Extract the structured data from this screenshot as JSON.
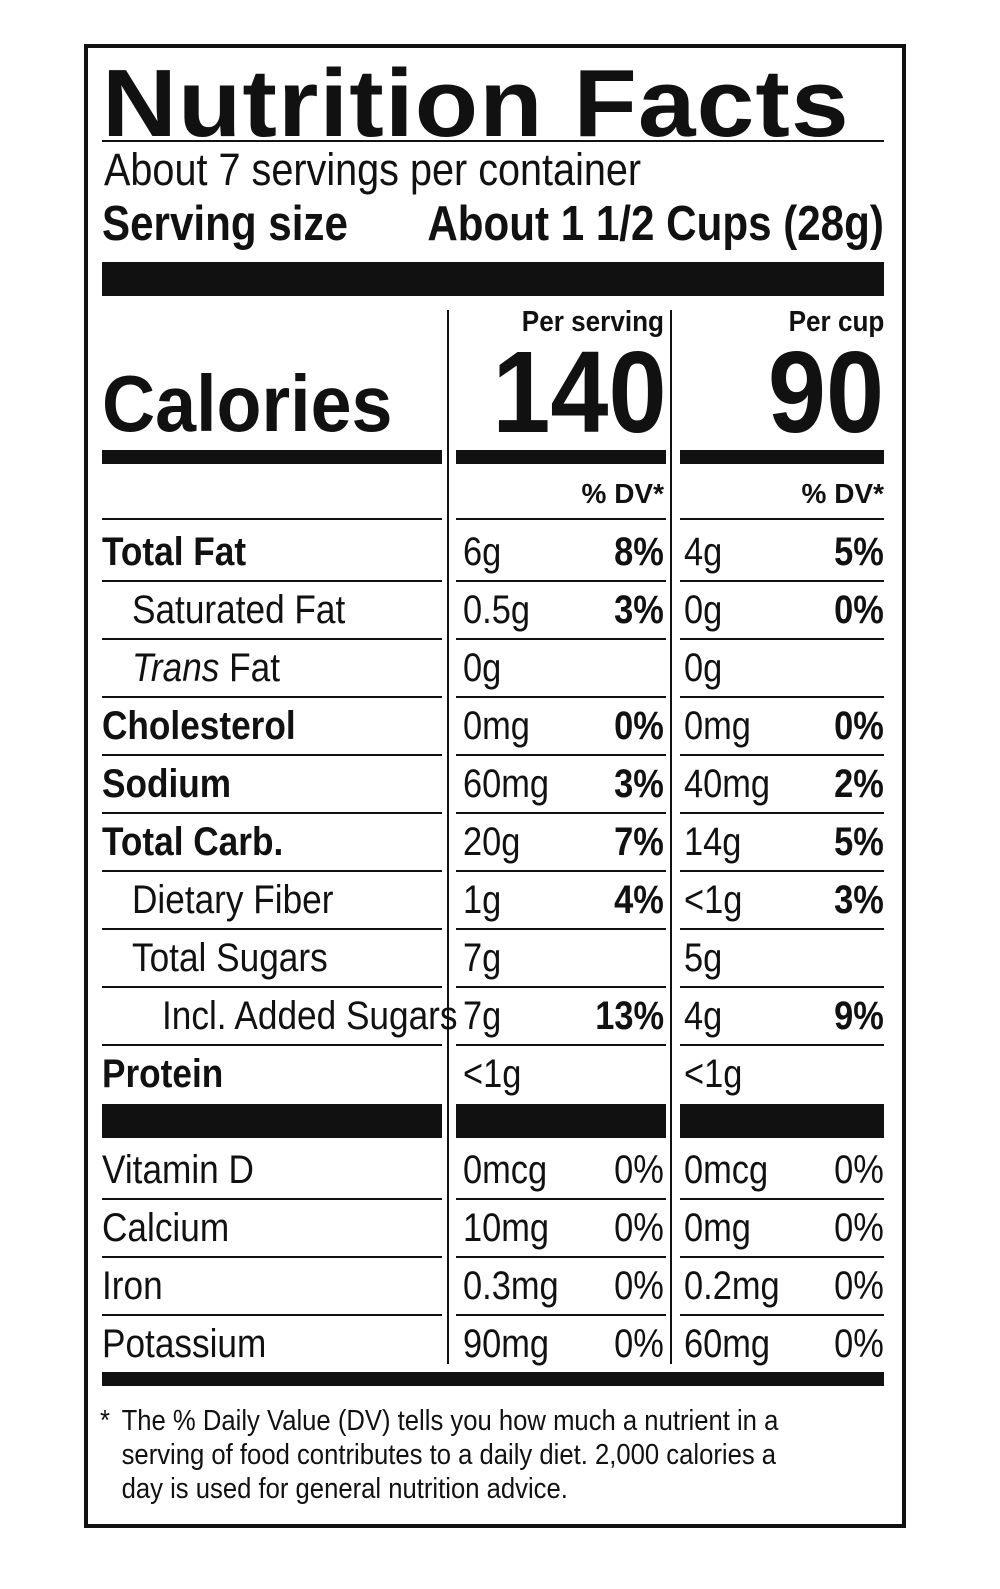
{
  "title": "Nutrition Facts",
  "servings_per_container": "About 7 servings per container",
  "serving_size": {
    "label": "Serving size",
    "value": "About 1 1/2 Cups (28g)"
  },
  "calories": {
    "label": "Calories",
    "columns": [
      {
        "heading": "Per serving",
        "value": "140",
        "dv_heading": "% DV*"
      },
      {
        "heading": "Per cup",
        "value": "90",
        "dv_heading": "% DV*"
      }
    ]
  },
  "nutrients": [
    {
      "name": "Total Fat",
      "bold": true,
      "indent": 0,
      "serving": {
        "amount": "6g",
        "dv": "8%"
      },
      "cup": {
        "amount": "4g",
        "dv": "5%"
      }
    },
    {
      "name": "Saturated Fat",
      "bold": false,
      "indent": 1,
      "serving": {
        "amount": "0.5g",
        "dv": "3%"
      },
      "cup": {
        "amount": "0g",
        "dv": "0%"
      }
    },
    {
      "name_italic": "Trans",
      "name": " Fat",
      "bold": false,
      "indent": 1,
      "serving": {
        "amount": "0g",
        "dv": ""
      },
      "cup": {
        "amount": "0g",
        "dv": ""
      }
    },
    {
      "name": "Cholesterol",
      "bold": true,
      "indent": 0,
      "serving": {
        "amount": "0mg",
        "dv": "0%"
      },
      "cup": {
        "amount": "0mg",
        "dv": "0%"
      }
    },
    {
      "name": "Sodium",
      "bold": true,
      "indent": 0,
      "serving": {
        "amount": "60mg",
        "dv": "3%"
      },
      "cup": {
        "amount": "40mg",
        "dv": "2%"
      }
    },
    {
      "name": "Total Carb.",
      "bold": true,
      "indent": 0,
      "serving": {
        "amount": "20g",
        "dv": "7%"
      },
      "cup": {
        "amount": "14g",
        "dv": "5%"
      }
    },
    {
      "name": "Dietary Fiber",
      "bold": false,
      "indent": 1,
      "serving": {
        "amount": "1g",
        "dv": "4%"
      },
      "cup": {
        "amount": "<1g",
        "dv": "3%"
      }
    },
    {
      "name": "Total Sugars",
      "bold": false,
      "indent": 1,
      "serving": {
        "amount": "7g",
        "dv": ""
      },
      "cup": {
        "amount": "5g",
        "dv": ""
      }
    },
    {
      "name": "Incl. Added Sugars",
      "bold": false,
      "indent": 2,
      "serving": {
        "amount": "7g",
        "dv": "13%"
      },
      "cup": {
        "amount": "4g",
        "dv": "9%"
      }
    },
    {
      "name": "Protein",
      "bold": true,
      "indent": 0,
      "serving": {
        "amount": "<1g",
        "dv": ""
      },
      "cup": {
        "amount": "<1g",
        "dv": ""
      }
    }
  ],
  "vitamins": [
    {
      "name": "Vitamin D",
      "serving": {
        "amount": "0mcg",
        "dv": "0%"
      },
      "cup": {
        "amount": "0mcg",
        "dv": "0%"
      }
    },
    {
      "name": "Calcium",
      "serving": {
        "amount": "10mg",
        "dv": "0%"
      },
      "cup": {
        "amount": "0mg",
        "dv": "0%"
      }
    },
    {
      "name": "Iron",
      "serving": {
        "amount": "0.3mg",
        "dv": "0%"
      },
      "cup": {
        "amount": "0.2mg",
        "dv": "0%"
      }
    },
    {
      "name": "Potassium",
      "serving": {
        "amount": "90mg",
        "dv": "0%"
      },
      "cup": {
        "amount": "60mg",
        "dv": "0%"
      }
    }
  ],
  "footnote": {
    "marker": "*",
    "text": "The % Daily Value (DV) tells you how much a nutrient in a serving of food contributes to a daily diet. 2,000 calories a day is used for general nutrition advice."
  }
}
